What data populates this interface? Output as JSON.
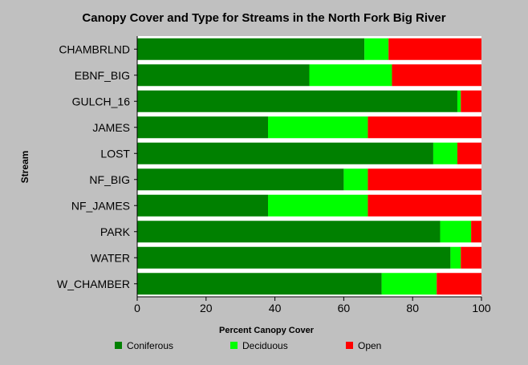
{
  "chart_data": {
    "type": "bar",
    "orientation": "horizontal",
    "stacked": true,
    "title": "Canopy Cover and Type for Streams in the North Fork Big River",
    "xlabel": "Percent Canopy Cover",
    "ylabel": "Stream",
    "xlim": [
      0,
      100
    ],
    "xticks": [
      "0",
      "20",
      "40",
      "60",
      "80",
      "100"
    ],
    "categories": [
      "CHAMBRLND",
      "EBNF_BIG",
      "GULCH_16",
      "JAMES",
      "LOST",
      "NF_BIG",
      "NF_JAMES",
      "PARK",
      "WATER",
      "W_CHAMBER"
    ],
    "series": [
      {
        "name": "Coniferous",
        "color": "#008000",
        "values": [
          66,
          50,
          93,
          38,
          86,
          60,
          38,
          88,
          91,
          71
        ]
      },
      {
        "name": "Deciduous",
        "color": "#00ff00",
        "values": [
          7,
          24,
          1,
          29,
          7,
          7,
          29,
          9,
          3,
          16
        ]
      },
      {
        "name": "Open",
        "color": "#ff0000",
        "values": [
          27,
          26,
          6,
          33,
          7,
          33,
          33,
          3,
          6,
          13
        ]
      }
    ],
    "grid": false,
    "legend_position": "bottom"
  }
}
